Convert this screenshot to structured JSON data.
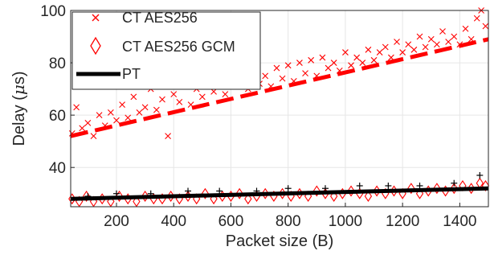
{
  "chart_data": {
    "type": "scatter",
    "xlabel": "Packet size (B)",
    "ylabel_prefix": "Delay (",
    "ylabel_mu": "μ",
    "ylabel_suffix": "s)",
    "xlim": [
      40,
      1500
    ],
    "ylim": [
      25,
      100
    ],
    "xticks": [
      200,
      400,
      600,
      800,
      1000,
      1200,
      1400
    ],
    "yticks": [
      40,
      60,
      80,
      100
    ],
    "grid": true,
    "legend_position": "top-left",
    "series": [
      {
        "name": "CT AES256",
        "marker": "x",
        "color": "#ff0000",
        "trend": {
          "x": [
            40,
            1500
          ],
          "y": [
            52,
            89
          ]
        },
        "points": [
          [
            45,
            53
          ],
          [
            60,
            63
          ],
          [
            80,
            55
          ],
          [
            100,
            57
          ],
          [
            120,
            52
          ],
          [
            140,
            60
          ],
          [
            160,
            56
          ],
          [
            180,
            61
          ],
          [
            200,
            58
          ],
          [
            220,
            64
          ],
          [
            240,
            59
          ],
          [
            260,
            67
          ],
          [
            280,
            61
          ],
          [
            300,
            63
          ],
          [
            320,
            70
          ],
          [
            340,
            62
          ],
          [
            360,
            66
          ],
          [
            380,
            52
          ],
          [
            400,
            68
          ],
          [
            420,
            65
          ],
          [
            440,
            72
          ],
          [
            460,
            64
          ],
          [
            480,
            70
          ],
          [
            500,
            67
          ],
          [
            520,
            75
          ],
          [
            540,
            69
          ],
          [
            560,
            72
          ],
          [
            580,
            68
          ],
          [
            600,
            76
          ],
          [
            620,
            71
          ],
          [
            640,
            73
          ],
          [
            660,
            70
          ],
          [
            680,
            78
          ],
          [
            700,
            72
          ],
          [
            720,
            75
          ],
          [
            740,
            71
          ],
          [
            760,
            78
          ],
          [
            780,
            74
          ],
          [
            800,
            79
          ],
          [
            820,
            73
          ],
          [
            840,
            80
          ],
          [
            860,
            76
          ],
          [
            880,
            81
          ],
          [
            900,
            75
          ],
          [
            920,
            82
          ],
          [
            940,
            78
          ],
          [
            960,
            80
          ],
          [
            980,
            77
          ],
          [
            1000,
            84
          ],
          [
            1020,
            79
          ],
          [
            1040,
            82
          ],
          [
            1060,
            80
          ],
          [
            1080,
            85
          ],
          [
            1100,
            81
          ],
          [
            1120,
            84
          ],
          [
            1140,
            86
          ],
          [
            1160,
            82
          ],
          [
            1180,
            88
          ],
          [
            1200,
            84
          ],
          [
            1220,
            87
          ],
          [
            1240,
            85
          ],
          [
            1260,
            90
          ],
          [
            1280,
            86
          ],
          [
            1300,
            89
          ],
          [
            1320,
            87
          ],
          [
            1340,
            92
          ],
          [
            1360,
            88
          ],
          [
            1380,
            90
          ],
          [
            1400,
            87
          ],
          [
            1420,
            93
          ],
          [
            1440,
            89
          ],
          [
            1460,
            97
          ],
          [
            1475,
            100
          ],
          [
            1490,
            94
          ]
        ]
      },
      {
        "name": "CT AES256 GCM",
        "marker": "diamond",
        "color": "#ff0000",
        "points": [
          [
            45,
            28
          ],
          [
            70,
            27
          ],
          [
            95,
            29
          ],
          [
            120,
            27
          ],
          [
            150,
            28
          ],
          [
            180,
            27
          ],
          [
            210,
            29
          ],
          [
            240,
            28
          ],
          [
            270,
            27
          ],
          [
            300,
            29
          ],
          [
            330,
            28
          ],
          [
            360,
            28
          ],
          [
            390,
            29
          ],
          [
            420,
            28
          ],
          [
            450,
            29
          ],
          [
            480,
            28
          ],
          [
            510,
            30
          ],
          [
            540,
            28
          ],
          [
            570,
            29
          ],
          [
            600,
            29
          ],
          [
            630,
            30
          ],
          [
            660,
            28
          ],
          [
            690,
            29
          ],
          [
            720,
            30
          ],
          [
            750,
            29
          ],
          [
            780,
            30
          ],
          [
            810,
            29
          ],
          [
            840,
            30
          ],
          [
            870,
            29
          ],
          [
            900,
            31
          ],
          [
            930,
            30
          ],
          [
            960,
            29
          ],
          [
            990,
            30
          ],
          [
            1020,
            31
          ],
          [
            1050,
            30
          ],
          [
            1080,
            29
          ],
          [
            1110,
            31
          ],
          [
            1140,
            30
          ],
          [
            1170,
            31
          ],
          [
            1200,
            30
          ],
          [
            1230,
            32
          ],
          [
            1260,
            30
          ],
          [
            1290,
            31
          ],
          [
            1320,
            32
          ],
          [
            1350,
            31
          ],
          [
            1380,
            32
          ],
          [
            1410,
            33
          ],
          [
            1440,
            32
          ],
          [
            1470,
            34
          ],
          [
            1490,
            33
          ]
        ]
      },
      {
        "name": "PT",
        "marker": "line",
        "color": "#000000",
        "trend": {
          "x": [
            40,
            1500
          ],
          "y": [
            28,
            32
          ]
        },
        "points": [
          [
            100,
            29
          ],
          [
            200,
            30
          ],
          [
            320,
            30
          ],
          [
            450,
            31
          ],
          [
            560,
            31
          ],
          [
            690,
            31
          ],
          [
            800,
            32
          ],
          [
            930,
            32
          ],
          [
            1050,
            33
          ],
          [
            1150,
            33
          ],
          [
            1260,
            33
          ],
          [
            1380,
            34
          ],
          [
            1470,
            37
          ]
        ]
      }
    ]
  }
}
